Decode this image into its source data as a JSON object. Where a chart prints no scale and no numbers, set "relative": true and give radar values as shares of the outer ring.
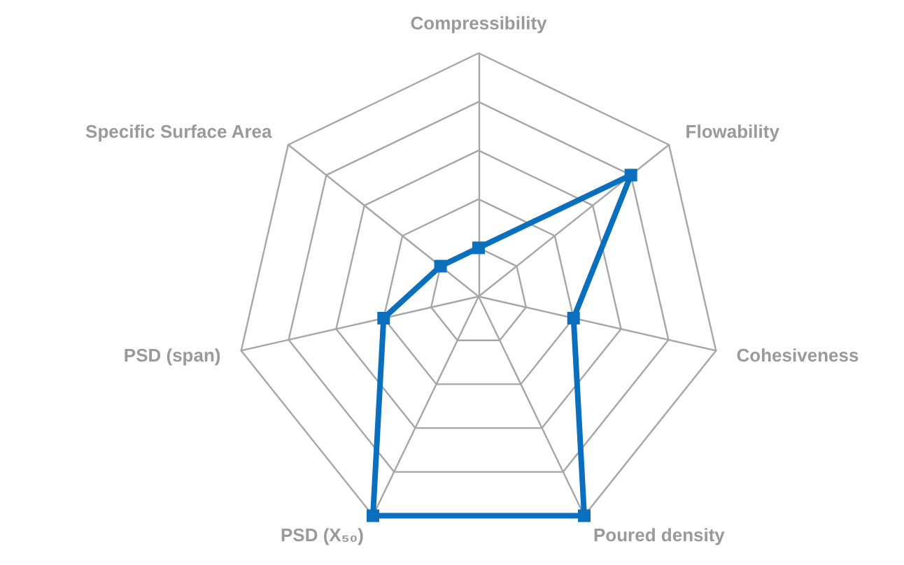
{
  "chart_data": {
    "type": "radar",
    "relative": true,
    "grid": true,
    "marker": "square",
    "line_style": "solid",
    "categories": [
      "Compressibility",
      "Flowability",
      "Cohesiveness",
      "Poured density",
      "PSD (X₅₀)",
      "PSD (span)",
      "Specific Surface Area"
    ],
    "series": [
      {
        "color": "#0a70bd",
        "values": [
          0.2,
          0.8,
          0.4,
          1,
          1,
          0.4,
          0.2
        ]
      }
    ]
  }
}
